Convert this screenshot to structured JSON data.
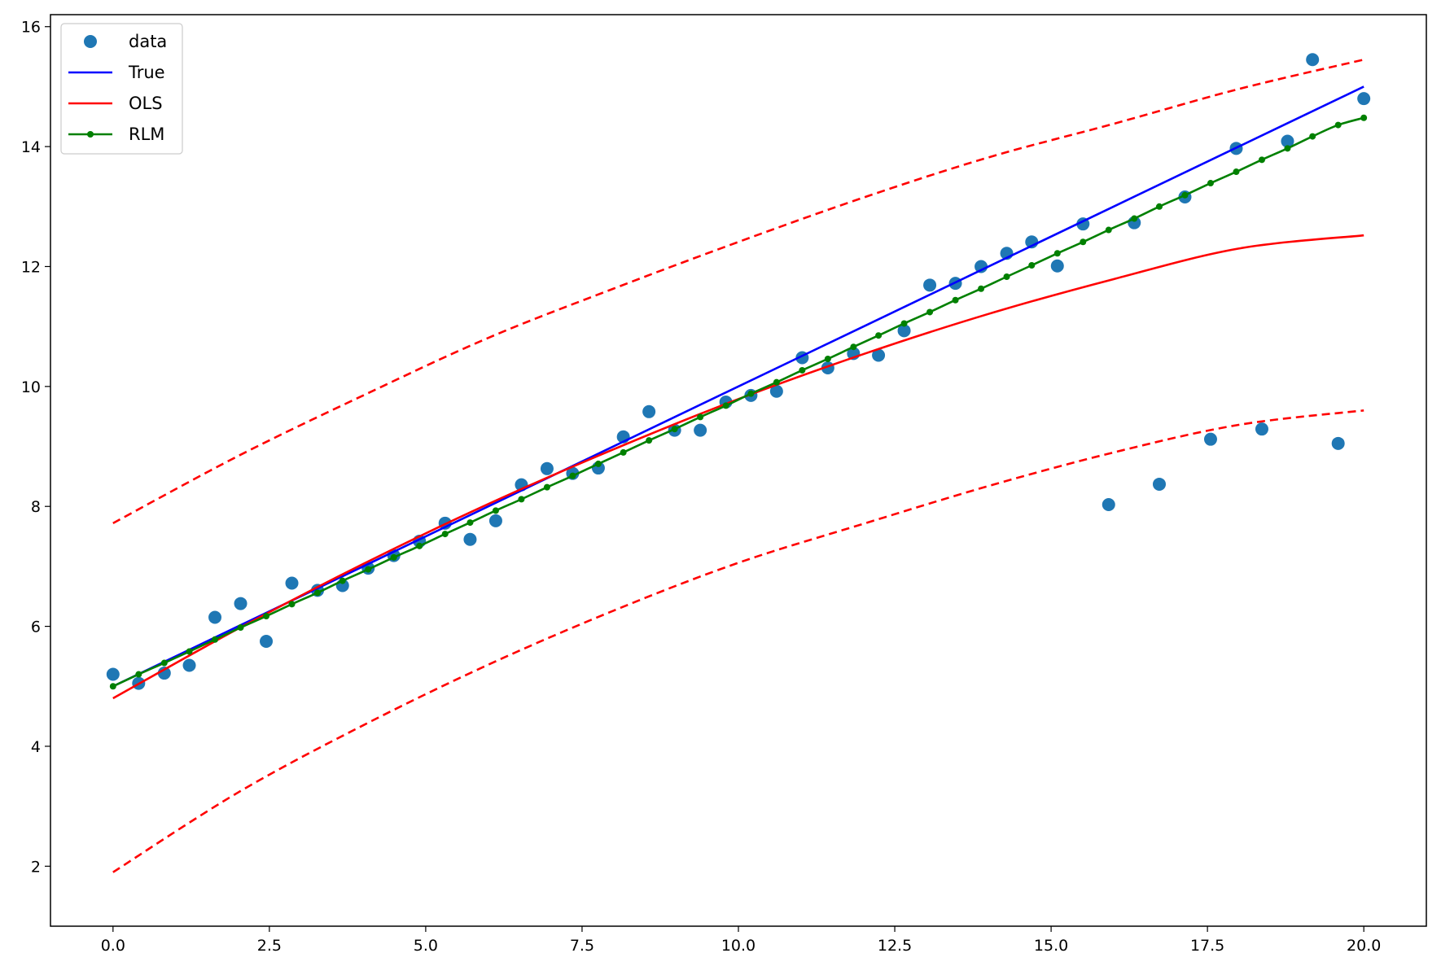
{
  "chart_data": {
    "type": "line",
    "title": "",
    "xlabel": "",
    "ylabel": "",
    "xlim": [
      -1.0,
      21.0
    ],
    "ylim": [
      1.0,
      16.2
    ],
    "x_ticks": [
      0.0,
      2.5,
      5.0,
      7.5,
      10.0,
      12.5,
      15.0,
      17.5,
      20.0
    ],
    "x_tick_labels": [
      "0.0",
      "2.5",
      "5.0",
      "7.5",
      "10.0",
      "12.5",
      "15.0",
      "17.5",
      "20.0"
    ],
    "y_ticks": [
      2,
      4,
      6,
      8,
      10,
      12,
      14,
      16
    ],
    "y_tick_labels": [
      "2",
      "4",
      "6",
      "8",
      "10",
      "12",
      "14",
      "16"
    ],
    "grid": false,
    "legend_position": "top-left",
    "series": [
      {
        "name": "data",
        "kind": "scatter",
        "color": "#1f77b4",
        "x": [
          0.0,
          0.41,
          0.82,
          1.22,
          1.63,
          2.04,
          2.45,
          2.86,
          3.27,
          3.67,
          4.08,
          4.49,
          4.9,
          5.31,
          5.71,
          6.12,
          6.53,
          6.94,
          7.35,
          7.76,
          8.16,
          8.57,
          8.98,
          9.39,
          9.8,
          10.2,
          10.61,
          11.02,
          11.43,
          11.84,
          12.24,
          12.65,
          13.06,
          13.47,
          13.88,
          14.29,
          14.69,
          15.1,
          15.51,
          15.92,
          16.33,
          16.73,
          17.14,
          17.55,
          17.96,
          18.37,
          18.78,
          19.18,
          19.59,
          20.0
        ],
        "y": [
          5.2,
          5.05,
          5.22,
          5.35,
          6.15,
          6.38,
          5.75,
          6.72,
          6.6,
          6.68,
          6.97,
          7.18,
          7.42,
          7.72,
          7.45,
          7.76,
          8.36,
          8.63,
          8.55,
          8.64,
          9.16,
          9.58,
          9.27,
          9.27,
          9.74,
          9.85,
          9.92,
          10.48,
          10.31,
          10.55,
          10.52,
          10.93,
          11.69,
          11.72,
          12.0,
          12.22,
          12.41,
          12.01,
          12.71,
          8.03,
          12.73,
          8.37,
          13.16,
          9.12,
          13.97,
          9.29,
          14.09,
          15.45,
          9.05,
          14.8
        ]
      },
      {
        "name": "True",
        "kind": "line",
        "color": "#0000ff",
        "x": [
          0,
          2,
          4,
          6,
          8,
          10,
          12,
          14,
          16,
          18,
          20
        ],
        "y": [
          5.0,
          6.0,
          7.0,
          8.0,
          9.0,
          10.0,
          11.0,
          12.0,
          13.0,
          14.0,
          15.0
        ]
      },
      {
        "name": "OLS",
        "kind": "line",
        "color": "#ff0000",
        "x": [
          0,
          2,
          4,
          6,
          8,
          10,
          12,
          14,
          16,
          18,
          20
        ],
        "y": [
          4.8,
          5.96,
          7.04,
          8.04,
          8.95,
          9.79,
          10.54,
          11.21,
          11.79,
          12.3,
          12.52
        ]
      },
      {
        "name": "",
        "kind": "line",
        "style": "dashed",
        "color": "#ff0000",
        "x": [
          0,
          2,
          4,
          6,
          8,
          10,
          12,
          14,
          16,
          18,
          20
        ],
        "y": [
          7.72,
          8.84,
          9.85,
          10.81,
          11.63,
          12.41,
          13.15,
          13.82,
          14.38,
          14.96,
          15.45
        ]
      },
      {
        "name": "",
        "kind": "line",
        "style": "dashed",
        "color": "#ff0000",
        "x": [
          0,
          2,
          4,
          6,
          8,
          10,
          12,
          14,
          16,
          18,
          20
        ],
        "y": [
          1.9,
          3.23,
          4.35,
          5.36,
          6.26,
          7.06,
          7.71,
          8.34,
          8.9,
          9.36,
          9.6
        ]
      },
      {
        "name": "RLM",
        "kind": "line-markers",
        "color": "#008000",
        "x": [
          0.0,
          0.41,
          0.82,
          1.22,
          1.63,
          2.04,
          2.45,
          2.86,
          3.27,
          3.67,
          4.08,
          4.49,
          4.9,
          5.31,
          5.71,
          6.12,
          6.53,
          6.94,
          7.35,
          7.76,
          8.16,
          8.57,
          8.98,
          9.39,
          9.8,
          10.2,
          10.61,
          11.02,
          11.43,
          11.84,
          12.24,
          12.65,
          13.06,
          13.47,
          13.88,
          14.29,
          14.69,
          15.1,
          15.51,
          15.92,
          16.33,
          16.73,
          17.14,
          17.55,
          17.96,
          18.37,
          18.78,
          19.18,
          19.59,
          20.0
        ],
        "y": [
          5.0,
          5.2,
          5.39,
          5.58,
          5.78,
          5.98,
          6.17,
          6.37,
          6.56,
          6.76,
          6.95,
          7.15,
          7.34,
          7.54,
          7.73,
          7.93,
          8.12,
          8.32,
          8.51,
          8.71,
          8.9,
          9.1,
          9.29,
          9.49,
          9.68,
          9.88,
          10.07,
          10.27,
          10.46,
          10.66,
          10.85,
          11.05,
          11.24,
          11.44,
          11.63,
          11.83,
          12.02,
          12.22,
          12.41,
          12.61,
          12.8,
          13.0,
          13.19,
          13.39,
          13.58,
          13.78,
          13.97,
          14.17,
          14.36,
          14.48
        ]
      }
    ]
  }
}
